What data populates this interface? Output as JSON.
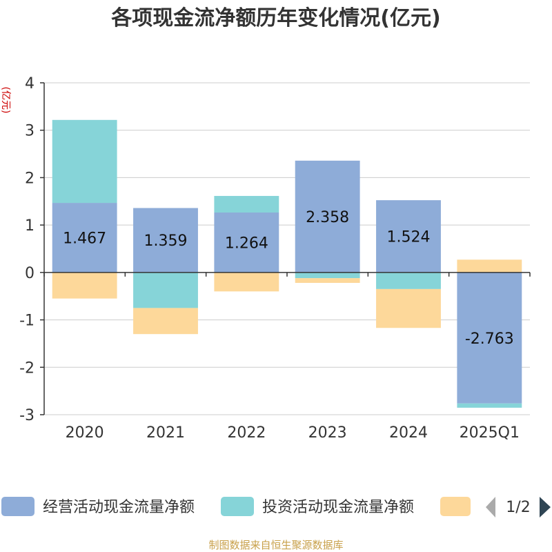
{
  "chart_data": {
    "type": "bar",
    "stacked": true,
    "title": "各项现金流净额历年变化情况(亿元)",
    "unit_label": "(亿元)",
    "categories": [
      "2020",
      "2021",
      "2022",
      "2023",
      "2024",
      "2025Q1"
    ],
    "ylim": [
      -3,
      4
    ],
    "yticks": [
      "4",
      "3",
      "2",
      "1",
      "0",
      "-1",
      "-2",
      "-3"
    ],
    "ytick_values": [
      4,
      3,
      2,
      1,
      0,
      -1,
      -2,
      -3
    ],
    "grid": true,
    "series": [
      {
        "name": "经营活动现金流量净额",
        "color": "#8eacd8",
        "values": [
          1.467,
          1.359,
          1.264,
          2.358,
          1.524,
          -2.763
        ],
        "labels": [
          "1.467",
          "1.359",
          "1.264",
          "2.358",
          "1.524",
          "-2.763"
        ]
      },
      {
        "name": "投资活动现金流量净额",
        "color": "#86d4d8",
        "values": [
          1.75,
          -0.75,
          0.35,
          -0.12,
          -0.35,
          -0.09
        ]
      },
      {
        "name": "",
        "color": "#fdd89a",
        "values": [
          -0.55,
          -0.55,
          -0.4,
          -0.1,
          -0.82,
          0.27
        ]
      }
    ],
    "legend": {
      "placement": "bottom",
      "page": "1/2"
    },
    "source": "制图数据来自恒生聚源数据库"
  }
}
